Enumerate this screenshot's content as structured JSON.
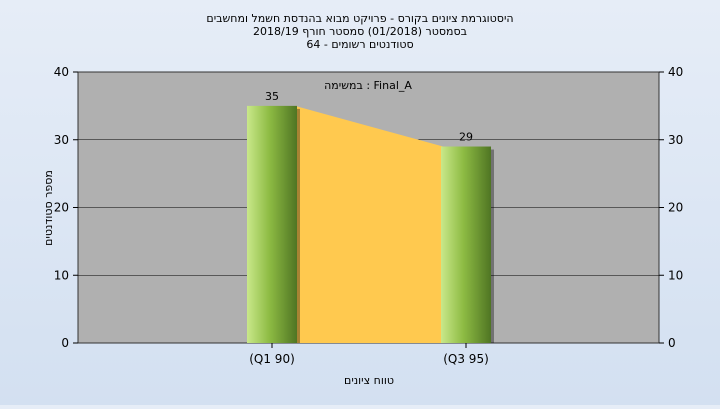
{
  "chart_data": {
    "type": "bar",
    "title_lines": [
      "היסטוגרמת ציונים בקורס - פרויקט מבוא בהנדסת חשמל ומחשבים",
      "בסמסטר  (01/2018)  סמסטר חורף  2018/19",
      "סטודנטים רשומים - 64"
    ],
    "annotation": "במשימה : Final_A",
    "xlabel": "טווח ציונים",
    "ylabel": "מספר סטודנטים",
    "categories": [
      "(Q1 90)",
      "(Q3 95)"
    ],
    "values": [
      35,
      29
    ],
    "data_labels": [
      "35",
      "29"
    ],
    "ylim": [
      0,
      40
    ],
    "yticks": [
      0,
      10,
      20,
      30,
      40
    ],
    "grid": true,
    "colors": {
      "plot_bg": "#b0b0b0",
      "area_fill": "#ffc94f",
      "bar_light": "#c9e88a",
      "bar_mid": "#8dbb43",
      "bar_dark": "#4f7523",
      "grid": "#000000"
    }
  }
}
